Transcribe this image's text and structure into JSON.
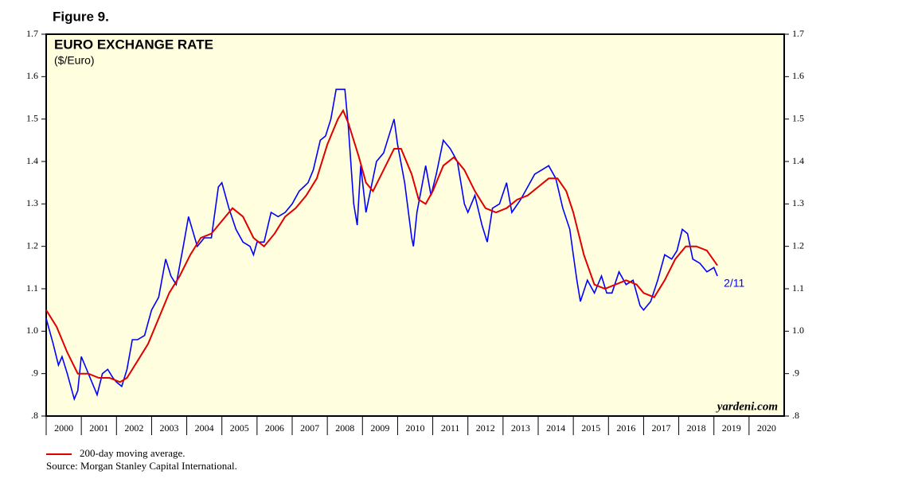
{
  "figure_label": "Figure 9.",
  "chart_data": {
    "type": "line",
    "title": "EURO EXCHANGE RATE",
    "subtitle": "($/Euro)",
    "annotation": "2/11",
    "watermark": "yardeni.com",
    "source": "Source: Morgan Stanley Capital International.",
    "background": "#ffffe0",
    "xlim": [
      2000,
      2021
    ],
    "xticks": [
      {
        "value": 2000.5,
        "label": "2000"
      },
      {
        "value": 2001.5,
        "label": "2001"
      },
      {
        "value": 2002.5,
        "label": "2002"
      },
      {
        "value": 2003.5,
        "label": "2003"
      },
      {
        "value": 2004.5,
        "label": "2004"
      },
      {
        "value": 2005.5,
        "label": "2005"
      },
      {
        "value": 2006.5,
        "label": "2006"
      },
      {
        "value": 2007.5,
        "label": "2007"
      },
      {
        "value": 2008.5,
        "label": "2008"
      },
      {
        "value": 2009.5,
        "label": "2009"
      },
      {
        "value": 2010.5,
        "label": "2010"
      },
      {
        "value": 2011.5,
        "label": "2011"
      },
      {
        "value": 2012.5,
        "label": "2012"
      },
      {
        "value": 2013.5,
        "label": "2013"
      },
      {
        "value": 2014.5,
        "label": "2014"
      },
      {
        "value": 2015.5,
        "label": "2015"
      },
      {
        "value": 2016.5,
        "label": "2016"
      },
      {
        "value": 2017.5,
        "label": "2017"
      },
      {
        "value": 2018.5,
        "label": "2018"
      },
      {
        "value": 2019.5,
        "label": "2019"
      },
      {
        "value": 2020.5,
        "label": "2020"
      }
    ],
    "ylim": [
      0.8,
      1.7
    ],
    "yticks": [
      {
        "value": 0.8,
        "label": ".8"
      },
      {
        "value": 0.9,
        "label": ".9"
      },
      {
        "value": 1,
        "label": "1.0"
      },
      1.1,
      1.2,
      1.3,
      1.4,
      1.5,
      1.6,
      1.7
    ],
    "series": [
      {
        "color": "#0000ff",
        "x": [
          2000.0,
          2000.2,
          2000.35,
          2000.45,
          2000.6,
          2000.8,
          2000.9,
          2001.0,
          2001.1,
          2001.3,
          2001.45,
          2001.6,
          2001.75,
          2001.9,
          2002.0,
          2002.15,
          2002.3,
          2002.45,
          2002.6,
          2002.8,
          2003.0,
          2003.2,
          2003.4,
          2003.55,
          2003.7,
          2003.9,
          2004.05,
          2004.3,
          2004.5,
          2004.7,
          2004.9,
          2005.0,
          2005.2,
          2005.4,
          2005.6,
          2005.8,
          2005.9,
          2006.0,
          2006.2,
          2006.4,
          2006.6,
          2006.8,
          2007.0,
          2007.2,
          2007.45,
          2007.6,
          2007.8,
          2007.95,
          2008.1,
          2008.25,
          2008.5,
          2008.6,
          2008.75,
          2008.85,
          2008.95,
          2009.1,
          2009.2,
          2009.4,
          2009.6,
          2009.9,
          2010.0,
          2010.2,
          2010.4,
          2010.45,
          2010.55,
          2010.8,
          2010.95,
          2011.1,
          2011.3,
          2011.5,
          2011.7,
          2011.9,
          2012.0,
          2012.2,
          2012.4,
          2012.55,
          2012.7,
          2012.9,
          2013.1,
          2013.25,
          2013.5,
          2013.7,
          2013.9,
          2014.1,
          2014.3,
          2014.5,
          2014.7,
          2014.9,
          2015.0,
          2015.1,
          2015.2,
          2015.4,
          2015.6,
          2015.8,
          2015.95,
          2016.1,
          2016.3,
          2016.5,
          2016.7,
          2016.9,
          2017.0,
          2017.2,
          2017.4,
          2017.6,
          2017.8,
          2017.95,
          2018.1,
          2018.25,
          2018.4,
          2018.6,
          2018.8,
          2019.0,
          2019.1
        ],
        "values": [
          1.03,
          0.97,
          0.92,
          0.94,
          0.9,
          0.84,
          0.86,
          0.94,
          0.92,
          0.88,
          0.85,
          0.9,
          0.91,
          0.89,
          0.88,
          0.87,
          0.91,
          0.98,
          0.98,
          0.99,
          1.05,
          1.08,
          1.17,
          1.13,
          1.11,
          1.2,
          1.27,
          1.2,
          1.22,
          1.22,
          1.34,
          1.35,
          1.29,
          1.24,
          1.21,
          1.2,
          1.18,
          1.21,
          1.21,
          1.28,
          1.27,
          1.28,
          1.3,
          1.33,
          1.35,
          1.38,
          1.45,
          1.46,
          1.5,
          1.57,
          1.57,
          1.48,
          1.3,
          1.25,
          1.39,
          1.28,
          1.32,
          1.4,
          1.42,
          1.5,
          1.44,
          1.35,
          1.22,
          1.2,
          1.28,
          1.39,
          1.32,
          1.37,
          1.45,
          1.43,
          1.4,
          1.3,
          1.28,
          1.32,
          1.25,
          1.21,
          1.29,
          1.3,
          1.35,
          1.28,
          1.31,
          1.34,
          1.37,
          1.38,
          1.39,
          1.36,
          1.29,
          1.24,
          1.18,
          1.12,
          1.07,
          1.12,
          1.09,
          1.13,
          1.09,
          1.09,
          1.14,
          1.11,
          1.12,
          1.06,
          1.05,
          1.07,
          1.12,
          1.18,
          1.17,
          1.19,
          1.24,
          1.23,
          1.17,
          1.16,
          1.14,
          1.15,
          1.13
        ]
      },
      {
        "name": "200-day moving average.",
        "color": "#e00000",
        "x": [
          2000.0,
          2000.3,
          2000.6,
          2000.9,
          2001.2,
          2001.5,
          2001.8,
          2002.1,
          2002.3,
          2002.6,
          2002.9,
          2003.2,
          2003.5,
          2003.8,
          2004.1,
          2004.4,
          2004.7,
          2005.0,
          2005.3,
          2005.6,
          2005.9,
          2006.2,
          2006.5,
          2006.8,
          2007.1,
          2007.4,
          2007.7,
          2008.0,
          2008.3,
          2008.45,
          2008.6,
          2008.9,
          2009.1,
          2009.3,
          2009.6,
          2009.9,
          2010.1,
          2010.4,
          2010.6,
          2010.8,
          2011.0,
          2011.3,
          2011.6,
          2011.9,
          2012.2,
          2012.5,
          2012.8,
          2013.1,
          2013.4,
          2013.7,
          2014.0,
          2014.3,
          2014.55,
          2014.8,
          2015.0,
          2015.3,
          2015.6,
          2015.9,
          2016.2,
          2016.5,
          2016.8,
          2017.0,
          2017.3,
          2017.6,
          2017.9,
          2018.2,
          2018.5,
          2018.8,
          2019.1
        ],
        "values": [
          1.05,
          1.01,
          0.95,
          0.9,
          0.9,
          0.89,
          0.89,
          0.88,
          0.89,
          0.93,
          0.97,
          1.03,
          1.09,
          1.13,
          1.18,
          1.22,
          1.23,
          1.26,
          1.29,
          1.27,
          1.22,
          1.2,
          1.23,
          1.27,
          1.29,
          1.32,
          1.36,
          1.44,
          1.5,
          1.52,
          1.49,
          1.41,
          1.35,
          1.33,
          1.38,
          1.43,
          1.43,
          1.37,
          1.31,
          1.3,
          1.33,
          1.39,
          1.41,
          1.38,
          1.33,
          1.29,
          1.28,
          1.29,
          1.31,
          1.32,
          1.34,
          1.36,
          1.36,
          1.33,
          1.28,
          1.18,
          1.11,
          1.1,
          1.11,
          1.12,
          1.11,
          1.09,
          1.08,
          1.12,
          1.17,
          1.2,
          1.2,
          1.19,
          1.155
        ]
      }
    ]
  }
}
